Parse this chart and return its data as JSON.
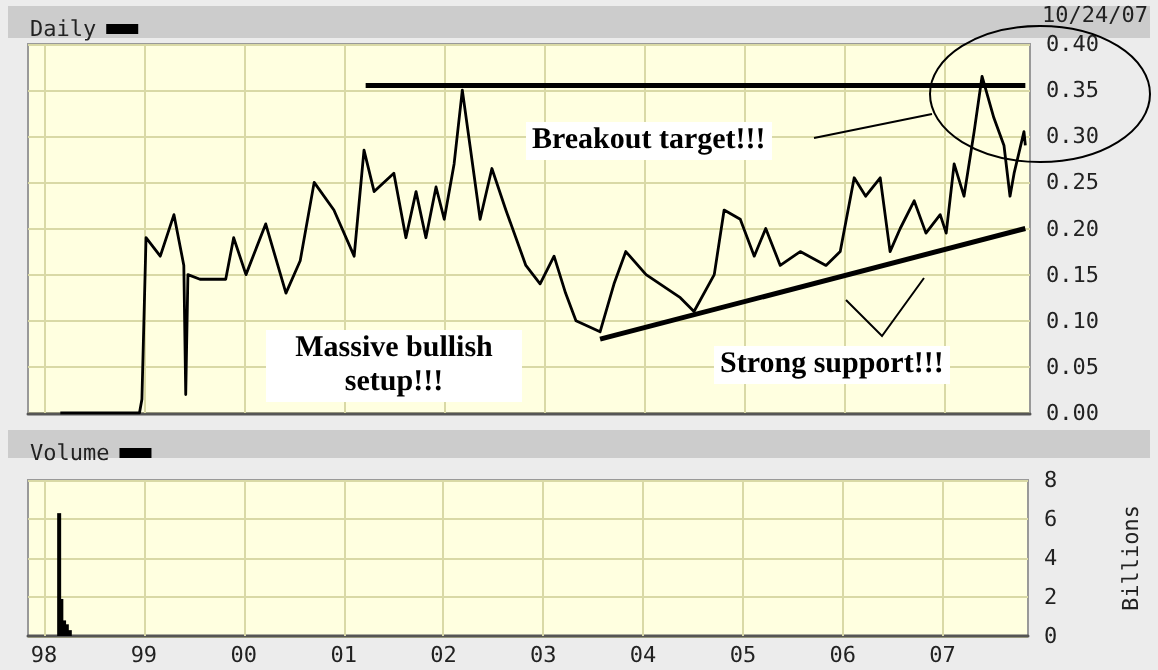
{
  "chart_data": [
    {
      "type": "line",
      "annotations": [
        "Breakout target!!!",
        "Massive bullish setup!!!",
        "Strong support!!!",
        "10/24/07"
      ],
      "xlim": [
        "1997-11-03",
        "2007-11-10"
      ],
      "xticks": [
        {
          "value": "1998-01-01",
          "label": null
        },
        {
          "value": "1999-01-01",
          "label": null
        },
        {
          "value": "2000-01-01",
          "label": null
        },
        {
          "value": "2001-01-01",
          "label": null
        },
        {
          "value": "2002-01-01",
          "label": null
        },
        {
          "value": "2003-01-01",
          "label": null
        },
        {
          "value": "2004-01-01",
          "label": null
        },
        {
          "value": "2005-01-01",
          "label": null
        },
        {
          "value": "2006-01-01",
          "label": null
        },
        {
          "value": "2007-01-01",
          "label": null
        }
      ],
      "ylim": [
        0,
        0.4
      ],
      "yticks": [
        {
          "value": 0,
          "label": "0.00"
        },
        {
          "value": 0.05,
          "label": "0.05"
        },
        {
          "value": 0.1,
          "label": "0.10"
        },
        {
          "value": 0.15,
          "label": "0.15"
        },
        {
          "value": 0.2,
          "label": "0.20"
        },
        {
          "value": 0.25,
          "label": "0.25"
        },
        {
          "value": 0.3,
          "label": "0.30"
        },
        {
          "value": 0.35,
          "label": "0.35"
        },
        {
          "value": 0.4,
          "label": "0.40"
        }
      ],
      "series": [
        {
          "name": "Daily",
          "color": "#000000",
          "x": [
            "1998-03-01",
            "1998-12-15",
            "1998-12-24",
            "1999-01-08",
            "1999-03-01",
            "1999-04-20",
            "1999-05-26",
            "1999-06-02",
            "1999-06-10",
            "1999-07-24",
            "1999-10-26",
            "1999-11-24",
            "2000-01-08",
            "2000-03-20",
            "2000-06-02",
            "2000-07-24",
            "2000-09-13",
            "2000-11-24",
            "2001-02-06",
            "2001-03-14",
            "2001-04-20",
            "2001-07-01",
            "2001-08-14",
            "2001-09-20",
            "2001-10-26",
            "2001-12-02",
            "2002-01-01",
            "2002-02-06",
            "2002-03-08",
            "2002-04-05",
            "2002-05-12",
            "2002-06-24",
            "2002-08-14",
            "2002-10-26",
            "2002-12-17",
            "2003-02-06",
            "2003-03-20",
            "2003-04-27",
            "2003-07-24",
            "2003-09-13",
            "2003-10-26",
            "2004-01-08",
            "2004-05-12",
            "2004-07-01",
            "2004-09-13",
            "2004-10-19",
            "2004-12-17",
            "2005-02-06",
            "2005-03-20",
            "2005-05-12",
            "2005-07-24",
            "2005-10-26",
            "2005-12-17",
            "2006-02-06",
            "2006-03-20",
            "2006-05-12",
            "2006-06-17",
            "2006-07-24",
            "2006-09-13",
            "2006-10-26",
            "2006-12-17",
            "2007-01-08",
            "2007-02-06",
            "2007-03-14",
            "2007-04-20",
            "2007-05-19",
            "2007-07-01",
            "2007-08-07",
            "2007-08-29",
            "2007-09-13",
            "2007-10-19",
            "2007-10-24"
          ],
          "values": [
            0,
            0,
            0.015,
            0.19,
            0.17,
            0.215,
            0.16,
            0.02,
            0.15,
            0.145,
            0.145,
            0.19,
            0.15,
            0.205,
            0.13,
            0.165,
            0.25,
            0.22,
            0.17,
            0.285,
            0.24,
            0.26,
            0.19,
            0.24,
            0.19,
            0.245,
            0.21,
            0.27,
            0.35,
            0.29,
            0.21,
            0.265,
            0.22,
            0.16,
            0.14,
            0.17,
            0.13,
            0.1,
            0.088,
            0.14,
            0.175,
            0.15,
            0.125,
            0.11,
            0.15,
            0.22,
            0.21,
            0.17,
            0.2,
            0.16,
            0.175,
            0.16,
            0.175,
            0.255,
            0.235,
            0.255,
            0.175,
            0.2,
            0.23,
            0.195,
            0.215,
            0.195,
            0.27,
            0.235,
            0.305,
            0.365,
            0.32,
            0.29,
            0.235,
            0.26,
            0.305,
            0.29
          ]
        },
        {
          "type": "line",
          "color": "#000000",
          "x": [
            "2001-03-20",
            "2007-10-24"
          ],
          "values": [
            0.355,
            0.355
          ]
        },
        {
          "type": "line",
          "color": "#000000",
          "x": [
            "2003-07-24",
            "2007-10-24"
          ],
          "values": [
            0.08,
            0.2
          ]
        }
      ],
      "grid": true,
      "legend": "top left",
      "tick_labels": "y"
    },
    {
      "type": "bar",
      "ylabel": "Billions",
      "xlim": [
        "1997-11-03",
        "2007-11-10"
      ],
      "xticks": [
        {
          "value": "1998-01-01",
          "label": "98"
        },
        {
          "value": "1999-01-01",
          "label": "99"
        },
        {
          "value": "2000-01-01",
          "label": "00"
        },
        {
          "value": "2001-01-01",
          "label": "01"
        },
        {
          "value": "2002-01-01",
          "label": "02"
        },
        {
          "value": "2003-01-01",
          "label": "03"
        },
        {
          "value": "2004-01-01",
          "label": "04"
        },
        {
          "value": "2005-01-01",
          "label": "05"
        },
        {
          "value": "2006-01-01",
          "label": "06"
        },
        {
          "value": "2007-01-01",
          "label": "07"
        }
      ],
      "ylim": [
        0,
        8
      ],
      "yticks": [
        0,
        2,
        4,
        6,
        8
      ],
      "series": [
        {
          "name": "Volume",
          "color": "#000000",
          "x": [
            "1998-02-25",
            "1998-03-05",
            "1998-03-15",
            "1998-03-25",
            "1998-04-05"
          ],
          "values": [
            6.3,
            1.9,
            0.8,
            0.6,
            0.3
          ]
        }
      ],
      "grid": true,
      "legend": "top left"
    }
  ]
}
